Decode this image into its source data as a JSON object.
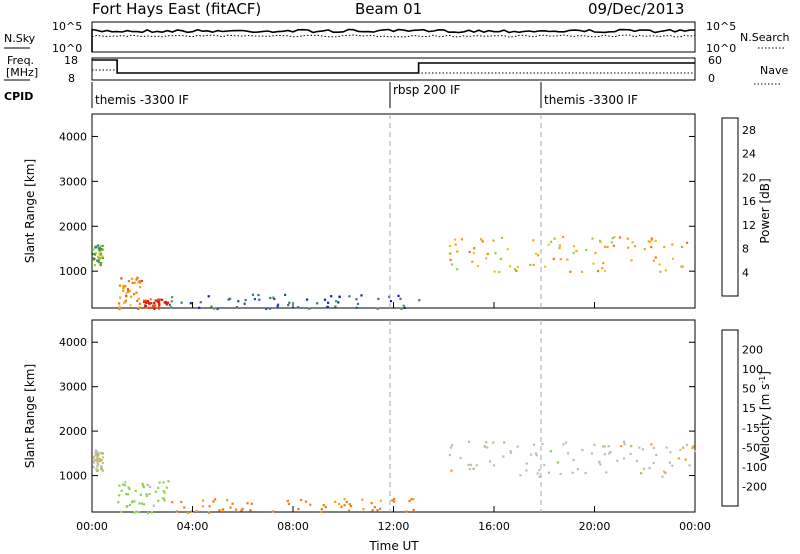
{
  "header": {
    "station": "Fort Hays East (fitACF)",
    "beam": "Beam 01",
    "date": "09/Dec/2013"
  },
  "nsky_panel": {
    "left_label": "N.Sky",
    "right_label": "N.Search",
    "right_ticks": [
      "10^5",
      "10^0"
    ],
    "left_ticks": [
      "10^5",
      "10^0"
    ]
  },
  "freq_panel": {
    "left_label": "Freq.",
    "left_unit": "[MHz]",
    "left_ticks": [
      "18",
      "8"
    ],
    "right_label": "Nave",
    "right_ticks": [
      "60",
      "0"
    ]
  },
  "cpid": {
    "label": "CPID",
    "segments": [
      {
        "name": "themis -3300 IF",
        "start_hour": 0
      },
      {
        "name": "rbsp 200 IF",
        "start_hour": 12
      },
      {
        "name": "themis -3300 IF",
        "start_hour": 18
      }
    ]
  },
  "colors": {
    "power_scale": [
      "#0b1fd6",
      "#2b4fa3",
      "#2e7d6a",
      "#4f9a49",
      "#8fd14a",
      "#f2c21f",
      "#f5a218",
      "#f07a1a",
      "#ea4a14",
      "#e01b10"
    ],
    "velocity_scale": [
      "#1a28c9",
      "#2c56b2",
      "#2e7d6a",
      "#4f9a49",
      "#8fd14a",
      "#bdbdb5",
      "#f5a218",
      "#f07a1a",
      "#ea4a14",
      "#e01b10"
    ],
    "ground_scatter": "#bdbdb5"
  },
  "chart_data": [
    {
      "type": "heatmap",
      "title": "",
      "xlabel": "",
      "ylabel": "Slant Range [km]",
      "xlim_hours": [
        0,
        24
      ],
      "ylim_km": [
        180,
        4500
      ],
      "y_ticks": [
        "1000",
        "2000",
        "3000",
        "4000"
      ],
      "x_ticks": [
        "00:00",
        "04:00",
        "08:00",
        "12:00",
        "16:00",
        "20:00",
        "00:00"
      ],
      "colorbar": {
        "label": "Power [dB]",
        "ticks": [
          "4",
          "8",
          "12",
          "16",
          "20",
          "24",
          "28"
        ],
        "range": [
          0,
          30
        ]
      },
      "echo_regions": [
        {
          "t_start": 0.0,
          "t_end": 0.4,
          "range_min": 1100,
          "range_max": 1600,
          "power_db": 12
        },
        {
          "t_start": 1.0,
          "t_end": 2.0,
          "range_min": 180,
          "range_max": 900,
          "power_db": 20
        },
        {
          "t_start": 2.0,
          "t_end": 3.0,
          "range_min": 180,
          "range_max": 400,
          "power_db": 28
        },
        {
          "t_start": 3.0,
          "t_end": 13.0,
          "range_min": 180,
          "range_max": 500,
          "power_db": 6
        },
        {
          "t_start": 14.2,
          "t_end": 24.0,
          "range_min": 1000,
          "range_max": 1800,
          "power_db": 18
        }
      ]
    },
    {
      "type": "heatmap",
      "title": "",
      "xlabel": "Time UT",
      "ylabel": "Slant Range [km]",
      "xlim_hours": [
        0,
        24
      ],
      "ylim_km": [
        180,
        4500
      ],
      "y_ticks": [
        "1000",
        "2000",
        "3000",
        "4000"
      ],
      "x_ticks": [
        "00:00",
        "04:00",
        "08:00",
        "12:00",
        "16:00",
        "20:00",
        "00:00"
      ],
      "colorbar": {
        "label": "Velocity [m s",
        "label_sup": "-1",
        "label_end": "]",
        "ticks": [
          "200",
          "100",
          "50",
          "15",
          "-15",
          "-50",
          "-100",
          "-200"
        ]
      },
      "echo_regions": [
        {
          "t_start": 0.0,
          "t_end": 0.4,
          "range_min": 1100,
          "range_max": 1600,
          "velocity": 0
        },
        {
          "t_start": 1.0,
          "t_end": 3.0,
          "range_min": 180,
          "range_max": 900,
          "velocity": 30
        },
        {
          "t_start": 3.0,
          "t_end": 13.0,
          "range_min": 180,
          "range_max": 500,
          "velocity": -60
        },
        {
          "t_start": 14.2,
          "t_end": 24.0,
          "range_min": 1000,
          "range_max": 1800,
          "velocity": 0
        }
      ]
    }
  ]
}
